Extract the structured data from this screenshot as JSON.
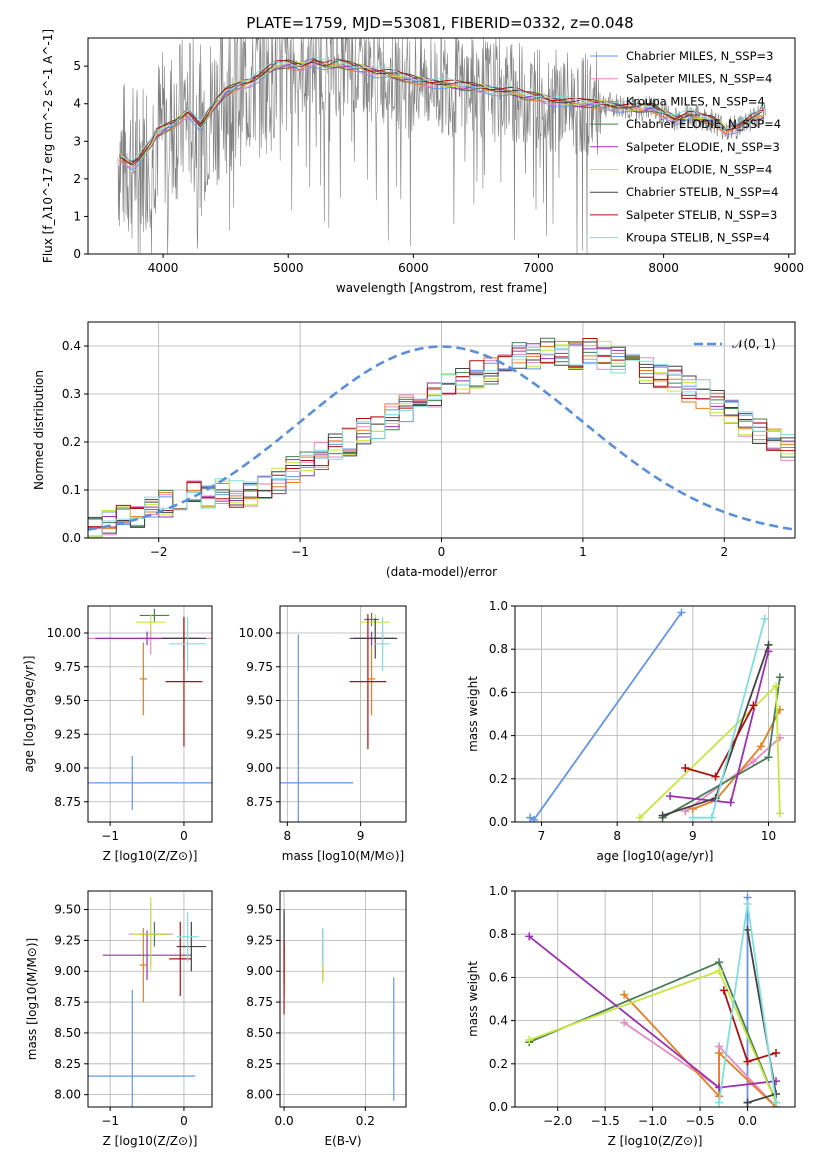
{
  "chart_data": [
    {
      "type": "line",
      "title": "PLATE=1759, MJD=53081, FIBERID=0332, z=0.048",
      "xlabel": "wavelength [Angstrom, rest frame]",
      "ylabel": "Flux [f_λ10^-17 erg cm^-2 s^-1 A^-1]",
      "xlim": [
        3400,
        9050
      ],
      "ylim": [
        0,
        5.75
      ],
      "xticks": [
        4000,
        5000,
        6000,
        7000,
        8000,
        9000
      ],
      "yticks": [
        0,
        1,
        2,
        3,
        4,
        5
      ],
      "legend": "top-right",
      "data_series": {
        "name": "data",
        "color": "#808080"
      },
      "series": [
        {
          "name": "Chabrier MILES, N_SSP=3",
          "color": "#6495ed"
        },
        {
          "name": "Salpeter MILES, N_SSP=4",
          "color": "#e78ac3"
        },
        {
          "name": "Kroupa MILES, N_SSP=4",
          "color": "#e67e22"
        },
        {
          "name": "Chabrier ELODIE, N_SSP=4",
          "color": "#4a7c59"
        },
        {
          "name": "Salpeter ELODIE, N_SSP=3",
          "color": "#9b30b0"
        },
        {
          "name": "Kroupa ELODIE, N_SSP=4",
          "color": "#c8e640"
        },
        {
          "name": "Chabrier STELIB, N_SSP=4",
          "color": "#444444"
        },
        {
          "name": "Salpeter STELIB, N_SSP=3",
          "color": "#b01010"
        },
        {
          "name": "Kroupa STELIB, N_SSP=4",
          "color": "#80dede"
        }
      ],
      "model_continuum": {
        "x": [
          3650,
          3700,
          3750,
          3800,
          3850,
          3900,
          3950,
          4000,
          4100,
          4200,
          4300,
          4400,
          4500,
          4600,
          4700,
          4800,
          4900,
          5000,
          5100,
          5200,
          5300,
          5400,
          5500,
          5600,
          5700,
          5800,
          5900,
          6000,
          6100,
          6200,
          6300,
          6400,
          6500,
          6600,
          6700,
          6800,
          6900,
          7000,
          7100,
          7200,
          7300,
          7400,
          7500,
          7600,
          7700,
          7800,
          7900,
          8000,
          8100,
          8200,
          8300,
          8400,
          8500,
          8600,
          8700,
          8800
        ],
        "y": [
          2.6,
          2.5,
          2.4,
          2.5,
          2.7,
          2.9,
          3.2,
          3.3,
          3.5,
          3.8,
          3.4,
          3.9,
          4.3,
          4.5,
          4.6,
          4.8,
          5.0,
          5.05,
          5.0,
          5.15,
          5.0,
          5.05,
          5.0,
          4.95,
          4.85,
          4.8,
          4.7,
          4.65,
          4.6,
          4.55,
          4.5,
          4.45,
          4.45,
          4.4,
          4.35,
          4.3,
          4.2,
          4.2,
          4.1,
          4.05,
          4.0,
          4.0,
          4.0,
          3.95,
          3.9,
          3.85,
          3.9,
          3.75,
          3.6,
          3.7,
          3.6,
          3.55,
          3.3,
          3.4,
          3.6,
          3.7
        ]
      }
    },
    {
      "type": "histogram",
      "xlabel": "(data-model)/error",
      "ylabel": "Normed distribution",
      "xlim": [
        -2.5,
        2.5
      ],
      "ylim": [
        0,
        0.45
      ],
      "xticks": [
        -2,
        -1,
        0,
        1,
        2
      ],
      "yticks": [
        0.0,
        0.1,
        0.2,
        0.3,
        0.4
      ],
      "legend": "top-right",
      "reference_curve": {
        "name": "𝒩(0, 1)",
        "color": "#5b8fd9"
      },
      "bin_width": 0.1,
      "bin_start": -2.5,
      "series_colors": [
        "#6495ed",
        "#e78ac3",
        "#e67e22",
        "#4a7c59",
        "#9b30b0",
        "#c8e640",
        "#444444",
        "#b01010",
        "#80dede"
      ],
      "envelope": [
        0.03,
        0.03,
        0.04,
        0.05,
        0.06,
        0.07,
        0.08,
        0.09,
        0.09,
        0.1,
        0.09,
        0.09,
        0.1,
        0.12,
        0.14,
        0.15,
        0.17,
        0.19,
        0.2,
        0.22,
        0.23,
        0.25,
        0.27,
        0.3,
        0.3,
        0.32,
        0.33,
        0.34,
        0.35,
        0.36,
        0.38,
        0.38,
        0.39,
        0.38,
        0.38,
        0.39,
        0.38,
        0.37,
        0.36,
        0.35,
        0.34,
        0.33,
        0.31,
        0.3,
        0.28,
        0.26,
        0.24,
        0.22,
        0.2,
        0.19,
        0.17,
        0.15,
        0.13,
        0.12,
        0.1,
        0.09,
        0.08,
        0.06,
        0.05,
        0.04,
        0.04,
        0.03,
        0.03,
        0.03,
        0.03,
        0.03,
        0.03,
        0.03,
        0.03,
        0.03
      ]
    },
    {
      "type": "scatter",
      "xlabel": "Z [log10(Z/Z⊙)]",
      "ylabel": "age [log10(age/yr)]",
      "xlim": [
        -1.3,
        0.38
      ],
      "ylim": [
        8.6,
        10.2
      ],
      "xticks": [
        -1,
        0
      ],
      "yticks": [
        8.75,
        9.0,
        9.25,
        9.5,
        9.75,
        10.0
      ],
      "points": [
        {
          "x": -0.7,
          "y": 8.89,
          "xerr": 1.1,
          "yerr": 0.2,
          "color": "#6495ed"
        },
        {
          "x": -0.45,
          "y": 9.96,
          "xerr": 0.85,
          "yerr": 0.12,
          "color": "#e78ac3"
        },
        {
          "x": -0.55,
          "y": 9.66,
          "xerr": 0.05,
          "yerr": 0.27,
          "color": "#e67e22"
        },
        {
          "x": -0.4,
          "y": 10.13,
          "xerr": 0.2,
          "yerr": 0.05,
          "color": "#4a7c59"
        },
        {
          "x": -0.5,
          "y": 9.96,
          "xerr": 0.7,
          "yerr": 0.05,
          "color": "#9b30b0"
        },
        {
          "x": -0.45,
          "y": 10.08,
          "xerr": 0.2,
          "yerr": 0.06,
          "color": "#c8e640"
        },
        {
          "x": 0.0,
          "y": 9.96,
          "xerr": 0.3,
          "yerr": 0.15,
          "color": "#444444"
        },
        {
          "x": 0.0,
          "y": 9.64,
          "xerr": 0.25,
          "yerr": 0.48,
          "color": "#b01010"
        },
        {
          "x": 0.05,
          "y": 9.92,
          "xerr": 0.25,
          "yerr": 0.2,
          "color": "#80dede"
        }
      ]
    },
    {
      "type": "scatter",
      "xlabel": "mass [log10(M/M⊙)]",
      "ylabel": "",
      "xlim": [
        7.9,
        9.62
      ],
      "ylim": [
        8.6,
        10.2
      ],
      "xticks": [
        8,
        9
      ],
      "yticks": [
        8.75,
        9.0,
        9.25,
        9.5,
        9.75,
        10.0
      ],
      "points": [
        {
          "x": 8.15,
          "y": 8.89,
          "xerr": 0.75,
          "yerr": 1.1,
          "color": "#6495ed"
        },
        {
          "x": 9.3,
          "y": 9.96,
          "xerr": 0.1,
          "yerr": 0.12,
          "color": "#e78ac3"
        },
        {
          "x": 9.15,
          "y": 9.66,
          "xerr": 0.05,
          "yerr": 0.27,
          "color": "#e67e22"
        },
        {
          "x": 9.15,
          "y": 10.1,
          "xerr": 0.1,
          "yerr": 0.05,
          "color": "#4a7c59"
        },
        {
          "x": 9.15,
          "y": 9.96,
          "xerr": 0.3,
          "yerr": 0.05,
          "color": "#9b30b0"
        },
        {
          "x": 9.2,
          "y": 10.08,
          "xerr": 0.2,
          "yerr": 0.06,
          "color": "#c8e640"
        },
        {
          "x": 9.2,
          "y": 9.96,
          "xerr": 0.3,
          "yerr": 0.15,
          "color": "#444444"
        },
        {
          "x": 9.1,
          "y": 9.64,
          "xerr": 0.25,
          "yerr": 0.5,
          "color": "#b01010"
        },
        {
          "x": 9.3,
          "y": 9.92,
          "xerr": 0.1,
          "yerr": 0.2,
          "color": "#80dede"
        }
      ]
    },
    {
      "type": "line",
      "xlabel": "age [log10(age/yr)]",
      "ylabel": "mass weight",
      "xlim": [
        6.65,
        10.35
      ],
      "ylim": [
        0,
        1.0
      ],
      "xticks": [
        7,
        8,
        9,
        10
      ],
      "yticks": [
        0.0,
        0.2,
        0.4,
        0.6,
        0.8,
        1.0
      ],
      "series": [
        {
          "color": "#6495ed",
          "x": [
            6.85,
            6.9,
            8.85
          ],
          "y": [
            0.02,
            0.01,
            0.97
          ]
        },
        {
          "color": "#e78ac3",
          "x": [
            8.9,
            9.8,
            10.15
          ],
          "y": [
            0.05,
            0.28,
            0.39
          ]
        },
        {
          "color": "#e67e22",
          "x": [
            9.0,
            9.3,
            9.9,
            10.15
          ],
          "y": [
            0.06,
            0.1,
            0.35,
            0.52
          ]
        },
        {
          "color": "#4a7c59",
          "x": [
            8.6,
            10.0,
            10.15
          ],
          "y": [
            0.02,
            0.3,
            0.67
          ]
        },
        {
          "color": "#9b30b0",
          "x": [
            8.7,
            9.5,
            10.0
          ],
          "y": [
            0.12,
            0.09,
            0.79
          ]
        },
        {
          "color": "#c8e640",
          "x": [
            8.3,
            10.1,
            10.15
          ],
          "y": [
            0.02,
            0.63,
            0.04
          ]
        },
        {
          "color": "#444444",
          "x": [
            8.6,
            9.3,
            10.0
          ],
          "y": [
            0.03,
            0.11,
            0.82
          ]
        },
        {
          "color": "#b01010",
          "x": [
            8.9,
            9.3,
            9.8
          ],
          "y": [
            0.25,
            0.21,
            0.54
          ]
        },
        {
          "color": "#80dede",
          "x": [
            9.0,
            9.25,
            9.95
          ],
          "y": [
            0.02,
            0.02,
            0.94
          ]
        }
      ]
    },
    {
      "type": "scatter",
      "xlabel": "Z [log10(Z/Z⊙)]",
      "ylabel": "mass [log10(M/M⊙)]",
      "xlim": [
        -1.3,
        0.38
      ],
      "ylim": [
        7.9,
        9.65
      ],
      "xticks": [
        -1,
        0
      ],
      "yticks": [
        8.0,
        8.25,
        8.5,
        8.75,
        9.0,
        9.25,
        9.5
      ],
      "points": [
        {
          "x": -0.7,
          "y": 8.15,
          "xerr": 0.85,
          "yerr": 0.7,
          "color": "#6495ed"
        },
        {
          "x": -0.45,
          "y": 9.3,
          "xerr": 0.3,
          "yerr": 0.25,
          "color": "#e78ac3"
        },
        {
          "x": -0.55,
          "y": 9.05,
          "xerr": 0.05,
          "yerr": 0.3,
          "color": "#e67e22"
        },
        {
          "x": -0.4,
          "y": 9.3,
          "xerr": 0.2,
          "yerr": 0.1,
          "color": "#4a7c59"
        },
        {
          "x": -0.5,
          "y": 9.13,
          "xerr": 0.6,
          "yerr": 0.2,
          "color": "#9b30b0"
        },
        {
          "x": -0.45,
          "y": 9.3,
          "xerr": 0.25,
          "yerr": 0.3,
          "color": "#c8e640"
        },
        {
          "x": 0.1,
          "y": 9.2,
          "xerr": 0.2,
          "yerr": 0.2,
          "color": "#444444"
        },
        {
          "x": -0.05,
          "y": 9.1,
          "xerr": 0.15,
          "yerr": 0.3,
          "color": "#b01010"
        },
        {
          "x": 0.05,
          "y": 9.28,
          "xerr": 0.15,
          "yerr": 0.2,
          "color": "#80dede"
        }
      ]
    },
    {
      "type": "scatter",
      "xlabel": "E(B-V)",
      "ylabel": "",
      "xlim": [
        -0.01,
        0.3
      ],
      "ylim": [
        7.9,
        9.65
      ],
      "xticks": [
        0.0,
        0.2
      ],
      "yticks": [
        8.0,
        8.25,
        8.5,
        8.75,
        9.0,
        9.25,
        9.5
      ],
      "points": [
        {
          "x": 0.27,
          "y": 8.45,
          "xerr": 0,
          "yerr": 0.5,
          "color": "#6495ed"
        },
        {
          "x": 0.0,
          "y": 9.3,
          "xerr": 0,
          "yerr": 0.2,
          "color": "#e78ac3"
        },
        {
          "x": 0.0,
          "y": 9.0,
          "xerr": 0,
          "yerr": 0.2,
          "color": "#e67e22"
        },
        {
          "x": 0.0,
          "y": 9.3,
          "xerr": 0,
          "yerr": 0.15,
          "color": "#4a7c59"
        },
        {
          "x": 0.095,
          "y": 9.13,
          "xerr": 0,
          "yerr": 0.2,
          "color": "#9b30b0"
        },
        {
          "x": 0.095,
          "y": 9.1,
          "xerr": 0,
          "yerr": 0.2,
          "color": "#c8e640"
        },
        {
          "x": 0.0,
          "y": 9.2,
          "xerr": 0,
          "yerr": 0.3,
          "color": "#444444"
        },
        {
          "x": 0.0,
          "y": 8.95,
          "xerr": 0,
          "yerr": 0.3,
          "color": "#b01010"
        },
        {
          "x": 0.095,
          "y": 9.2,
          "xerr": 0,
          "yerr": 0.15,
          "color": "#80dede"
        }
      ]
    },
    {
      "type": "line",
      "xlabel": "Z [log10(Z/Z⊙)]",
      "ylabel": "mass weight",
      "xlim": [
        -2.45,
        0.5
      ],
      "ylim": [
        0,
        1.0
      ],
      "xticks": [
        -2.0,
        -1.5,
        -1.0,
        -0.5,
        0.0
      ],
      "yticks": [
        0.0,
        0.2,
        0.4,
        0.6,
        0.8,
        1.0
      ],
      "series": [
        {
          "color": "#6495ed",
          "x": [
            0.0,
            0.0,
            0.0
          ],
          "y": [
            0.02,
            0.97,
            0.02
          ]
        },
        {
          "color": "#e78ac3",
          "x": [
            -1.3,
            -0.3,
            -0.3,
            0.3
          ],
          "y": [
            0.39,
            0.09,
            0.28,
            0.0
          ]
        },
        {
          "color": "#e67e22",
          "x": [
            -1.3,
            -0.3,
            -0.3,
            0.3
          ],
          "y": [
            0.52,
            0.05,
            0.25,
            0.0
          ]
        },
        {
          "color": "#4a7c59",
          "x": [
            -2.3,
            -0.3,
            0.3
          ],
          "y": [
            0.3,
            0.67,
            0.02
          ]
        },
        {
          "color": "#9b30b0",
          "x": [
            -2.3,
            -0.3,
            0.3
          ],
          "y": [
            0.79,
            0.09,
            0.12
          ]
        },
        {
          "color": "#c8e640",
          "x": [
            -2.3,
            -0.3,
            0.3
          ],
          "y": [
            0.31,
            0.63,
            0.02
          ]
        },
        {
          "color": "#444444",
          "x": [
            0.0,
            0.3,
            0.0
          ],
          "y": [
            0.02,
            0.06,
            0.82
          ]
        },
        {
          "color": "#b01010",
          "x": [
            -0.25,
            0.0,
            0.3
          ],
          "y": [
            0.54,
            0.21,
            0.25
          ]
        },
        {
          "color": "#80dede",
          "x": [
            -0.3,
            0.0,
            0.3
          ],
          "y": [
            0.02,
            0.94,
            0.02
          ]
        }
      ]
    }
  ]
}
